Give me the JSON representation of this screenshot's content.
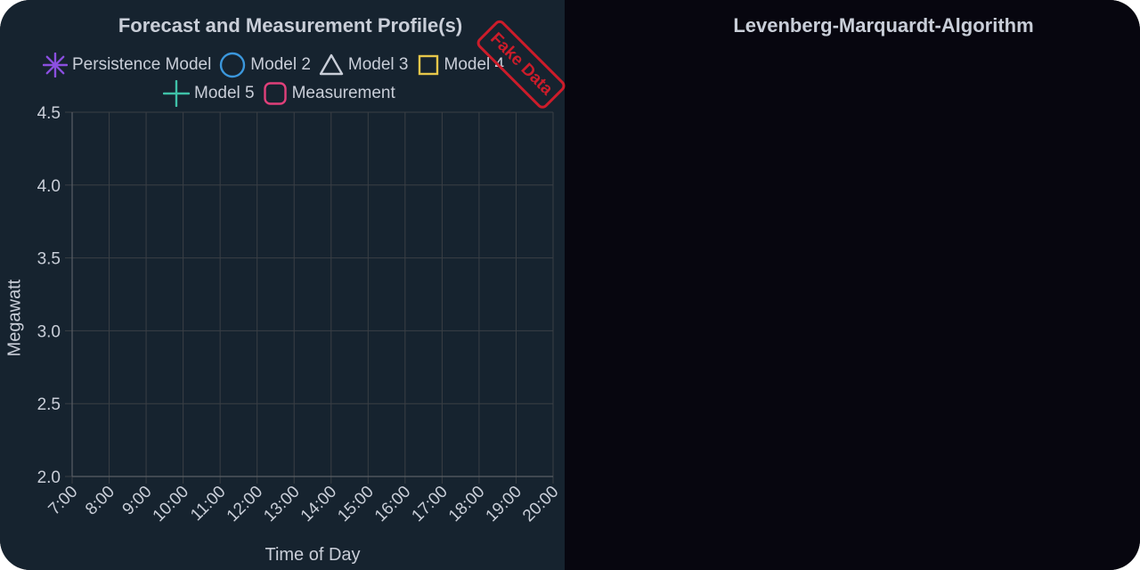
{
  "panels": {
    "left": {
      "title": "Forecast and Measurement Profile(s)"
    },
    "right": {
      "title": "Levenberg-Marquardt-Algorithm"
    }
  },
  "watermark": {
    "text": "Fake Data",
    "color": "#cc1c2a"
  },
  "colors": {
    "left_background": "#16232f",
    "right_background": "#07060f",
    "text": "#c9ced8",
    "grid": "#3a3f45"
  },
  "chart_data": {
    "type": "line",
    "title": "Forecast and Measurement Profile(s)",
    "xlabel": "Time of Day",
    "ylabel": "Megawatt",
    "x_ticks": [
      "7:00",
      "8:00",
      "9:00",
      "10:00",
      "11:00",
      "12:00",
      "13:00",
      "14:00",
      "15:00",
      "16:00",
      "17:00",
      "18:00",
      "19:00",
      "20:00"
    ],
    "y_ticks": [
      "2.0",
      "2.5",
      "3.0",
      "3.5",
      "4.0",
      "4.5"
    ],
    "ylim": [
      2.0,
      4.5
    ],
    "grid": true,
    "legend_position": "top",
    "series": [
      {
        "name": "Persistence Model",
        "marker": "star-icon",
        "color": "#8b4fe0",
        "values": []
      },
      {
        "name": "Model 2",
        "marker": "circle-icon",
        "color": "#3b97dc",
        "values": []
      },
      {
        "name": "Model 3",
        "marker": "triangle-icon",
        "color": "#c9ced8",
        "values": []
      },
      {
        "name": "Model 4",
        "marker": "square-icon",
        "color": "#e6c64a",
        "values": []
      },
      {
        "name": "Model 5",
        "marker": "cross-icon",
        "color": "#3fc1a8",
        "values": []
      },
      {
        "name": "Measurement",
        "marker": "rounded-square-icon",
        "color": "#e0407a",
        "values": []
      }
    ]
  }
}
